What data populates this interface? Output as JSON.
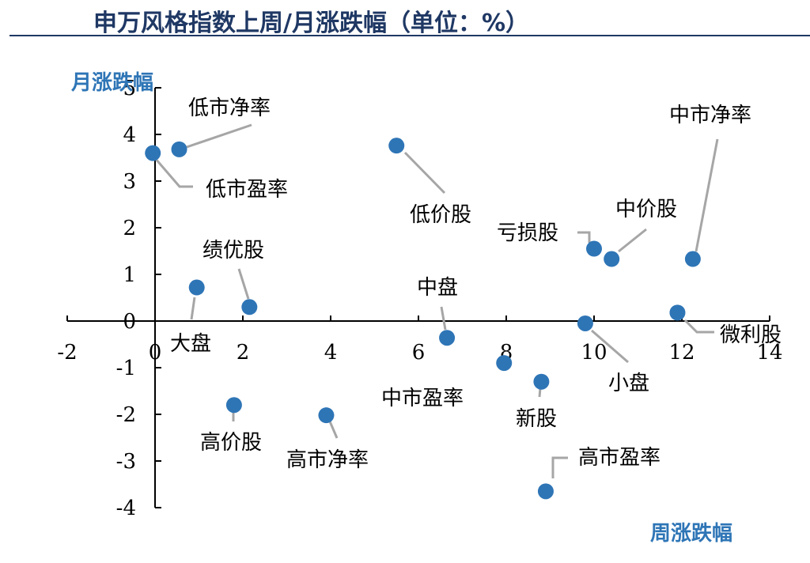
{
  "title": "申万风格指数上周/月涨跌幅（单位：%）",
  "chart_data": {
    "type": "scatter",
    "title": "申万风格指数上周/月涨跌幅（单位：%）",
    "xlabel": "周涨跌幅",
    "ylabel": "月涨跌幅",
    "xlim": [
      -2,
      14
    ],
    "ylim": [
      -4,
      5
    ],
    "xticks": [
      "-2",
      "0",
      "2",
      "4",
      "6",
      "8",
      "10",
      "12",
      "14"
    ],
    "yticks": [
      "-4",
      "-3",
      "-2",
      "-1",
      "0",
      "1",
      "2",
      "3",
      "4",
      "5"
    ],
    "grid": false,
    "points": [
      {
        "name": "低市净率",
        "x": 0.55,
        "y": 3.68
      },
      {
        "name": "低市盈率",
        "x": -0.05,
        "y": 3.6
      },
      {
        "name": "绩优股",
        "x": 2.15,
        "y": 0.3
      },
      {
        "name": "大盘",
        "x": 0.95,
        "y": 0.72
      },
      {
        "name": "低价股",
        "x": 5.5,
        "y": 3.76
      },
      {
        "name": "中盘",
        "x": 6.65,
        "y": -0.36
      },
      {
        "name": "中市盈率",
        "x": 7.95,
        "y": -0.9
      },
      {
        "name": "新股",
        "x": 8.8,
        "y": -1.3
      },
      {
        "name": "亏损股",
        "x": 10.0,
        "y": 1.55
      },
      {
        "name": "中价股",
        "x": 10.4,
        "y": 1.33
      },
      {
        "name": "中市净率",
        "x": 12.25,
        "y": 1.33
      },
      {
        "name": "小盘",
        "x": 9.8,
        "y": -0.05
      },
      {
        "name": "微利股",
        "x": 11.9,
        "y": 0.18
      },
      {
        "name": "高价股",
        "x": 1.8,
        "y": -1.8
      },
      {
        "name": "高市净率",
        "x": 3.9,
        "y": -2.02
      },
      {
        "name": "高市盈率",
        "x": 8.9,
        "y": -3.65
      }
    ],
    "colors": {
      "point": "#2e75b6",
      "axis_title": "#2e75b6",
      "title": "#1f3864"
    }
  }
}
